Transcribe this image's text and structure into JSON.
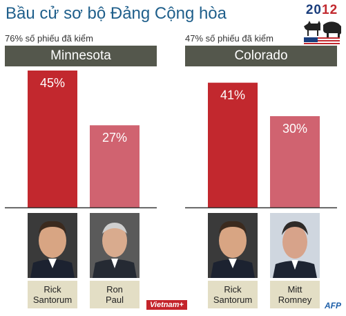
{
  "title": "Bầu cử sơ bộ Đảng Cộng hòa",
  "logo": {
    "year_part1": "20",
    "year_part2": "12"
  },
  "colors": {
    "primary_bar": "#c2282e",
    "secondary_bar": "#d06370",
    "state_band": "#54574c",
    "name_box": "#e3dec5",
    "title": "#1f5f8b"
  },
  "chart_data": [
    {
      "type": "bar",
      "state": "Minnesota",
      "reporting": "76% số phiếu đã kiểm",
      "categories": [
        "Rick Santorum",
        "Ron Paul"
      ],
      "values": [
        45,
        27
      ],
      "value_labels": [
        "45%",
        "27%"
      ],
      "ylim": [
        0,
        50
      ]
    },
    {
      "type": "bar",
      "state": "Colorado",
      "reporting": "47% số phiếu đã kiểm",
      "categories": [
        "Rick Santorum",
        "Mitt Romney"
      ],
      "values": [
        41,
        30
      ],
      "value_labels": [
        "41%",
        "30%"
      ],
      "ylim": [
        0,
        50
      ]
    }
  ],
  "candidates": {
    "mn": [
      {
        "first": "Rick",
        "last": "Santorum",
        "icon": "santorum-photo"
      },
      {
        "first": "Ron",
        "last": "Paul",
        "icon": "paul-photo"
      }
    ],
    "co": [
      {
        "first": "Rick",
        "last": "Santorum",
        "icon": "santorum-photo"
      },
      {
        "first": "Mitt",
        "last": "Romney",
        "icon": "romney-photo"
      }
    ]
  },
  "sources": {
    "vietnamplus": "Vietnam+",
    "afp": "AFP"
  }
}
